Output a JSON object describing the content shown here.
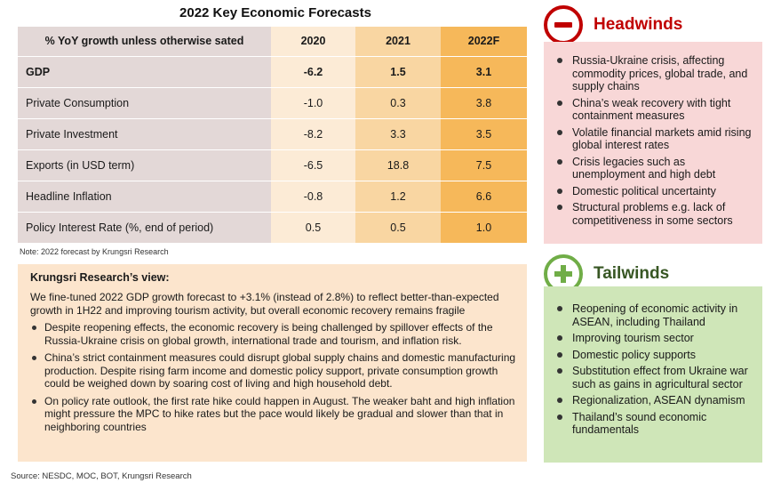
{
  "title": "2022  Key Economic Forecasts",
  "table": {
    "header": [
      "% YoY  growth unless otherwise sated",
      "2020",
      "2021",
      "2022F"
    ],
    "rows": [
      {
        "label": "GDP",
        "v2020": "-6.2",
        "v2021": "1.5",
        "v2022": "3.1"
      },
      {
        "label": "Private Consumption",
        "v2020": "-1.0",
        "v2021": "0.3",
        "v2022": "3.8"
      },
      {
        "label": "Private Investment",
        "v2020": "-8.2",
        "v2021": "3.3",
        "v2022": "3.5"
      },
      {
        "label": "Exports (in USD term)",
        "v2020": "-6.5",
        "v2021": "18.8",
        "v2022": "7.5"
      },
      {
        "label": "Headline Inflation",
        "v2020": "-0.8",
        "v2021": "1.2",
        "v2022": "6.6"
      },
      {
        "label": "Policy Interest Rate (%, end of period)",
        "v2020": "0.5",
        "v2021": "0.5",
        "v2022": "1.0"
      }
    ]
  },
  "note": "Note: 2022  forecast by Krungsri Research",
  "view": {
    "title": "Krungsri Research’s view:",
    "intro": "We fine-tuned 2022 GDP growth forecast to +3.1% (instead of 2.8%) to reflect better-than-expected growth in 1H22 and improving tourism activity, but overall economic recovery remains fragile",
    "bullets": [
      "Despite reopening effects, the economic recovery is being challenged by spillover effects of the Russia-Ukraine crisis on global growth, international trade and tourism, and inflation risk.",
      "China’s strict containment measures could disrupt global supply chains and domestic manufacturing production. Despite rising farm income and domestic policy support, private consumption growth could be weighed down by soaring cost of living and high household debt.",
      "On policy rate outlook, the first rate hike could happen in August. The weaker baht and high inflation might pressure the MPC to hike rates but the pace would likely be gradual and slower than that in neighboring countries"
    ]
  },
  "source": "Source: NESDC, MOC, BOT, Krungsri Research",
  "headwinds": {
    "title": "Headwinds",
    "icon": "minus-circle-icon",
    "color": "#c00000",
    "items": [
      "Russia-Ukraine crisis, affecting commodity prices, global trade, and supply chains",
      "China’s weak recovery with tight containment measures",
      "Volatile financial markets amid rising global interest rates",
      "Crisis legacies such as unemployment and high debt",
      "Domestic political uncertainty",
      "Structural problems e.g. lack of competitiveness in some sectors"
    ]
  },
  "tailwinds": {
    "title": "Tailwinds",
    "icon": "plus-circle-icon",
    "color": "#70ad47",
    "items": [
      "Reopening of economic activity in ASEAN, including Thailand",
      "Improving tourism sector",
      "Domestic policy supports",
      "Substitution effect from Ukraine war such as gains in agricultural sector",
      "Regionalization, ASEAN dynamism",
      "Thailand’s sound economic fundamentals"
    ]
  }
}
